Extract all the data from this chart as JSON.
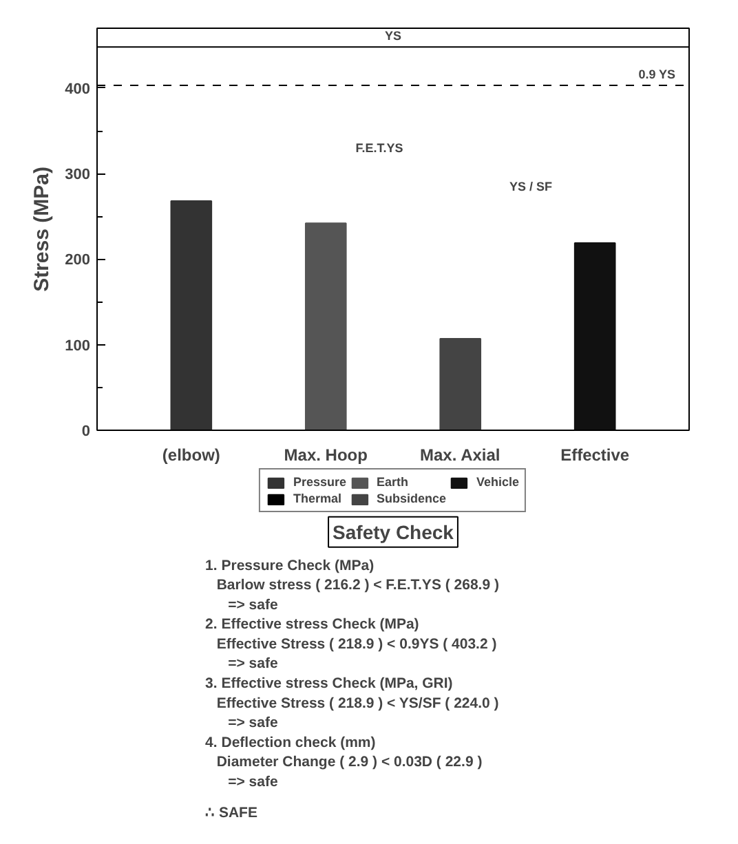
{
  "chart_data": {
    "type": "bar",
    "ylabel": "Stress (MPa)",
    "categories": [
      "(elbow)",
      "Max. Hoop",
      "Max. Axial",
      "Effective"
    ],
    "series": [
      {
        "name": "Pressure",
        "color": "#333333",
        "values": [
          268,
          null,
          null,
          null
        ]
      },
      {
        "name": "Earth",
        "color": "#555555",
        "values": [
          null,
          242,
          null,
          null
        ]
      },
      {
        "name": "Vehicle",
        "color": "#111111",
        "values": [
          null,
          null,
          null,
          219
        ]
      },
      {
        "name": "Thermal",
        "color": "#000000",
        "values": [
          null,
          null,
          null,
          null
        ]
      },
      {
        "name": "Subsidence",
        "color": "#444444",
        "values": [
          null,
          null,
          107,
          null
        ]
      }
    ],
    "ylim": [
      0,
      470
    ],
    "yticks": [
      0,
      {
        "value": 50,
        "label": null
      },
      100,
      {
        "value": 150,
        "label": null
      },
      200,
      {
        "value": 250,
        "label": null
      },
      300,
      {
        "value": 350,
        "label": null
      },
      400
    ],
    "ref_lines": [
      {
        "axis": "y",
        "value": 448,
        "label": "YS",
        "line_style": "solid"
      },
      {
        "axis": "y",
        "value": 403.2,
        "label": "0.9 YS",
        "line_style": "dashed"
      }
    ],
    "legend": "bottom",
    "grid": false,
    "annotations": [
      "F.E.T.YS",
      "YS / SF",
      "Safety Check",
      "1. Pressure Check (MPa)",
      "Barlow stress ( 216.2 ) < F.E.T.YS ( 268.9 )",
      "=> safe",
      "2. Effective stress Check (MPa)",
      "Effective Stress ( 218.9 ) < 0.9YS ( 403.2 )",
      "=> safe",
      "3. Effective stress Check (MPa, GRI)",
      "Effective Stress ( 218.9 ) < YS/SF ( 224.0 )",
      "=> safe",
      "4. Deflection check (mm)",
      "Diameter Change ( 2.9 ) < 0.03D ( 22.9 )",
      "=> safe",
      "∴ SAFE"
    ]
  }
}
